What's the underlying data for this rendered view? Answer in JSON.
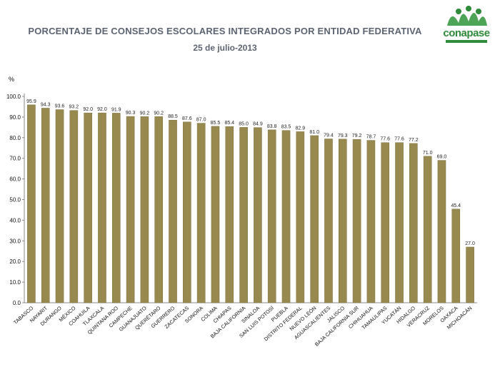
{
  "header": {
    "title": "PORCENTAJE  DE CONSEJOS ESCOLARES INTEGRADOS   POR ENTIDAD FEDERATIVA",
    "subtitle": "25 de julio-2013",
    "logo_text": "conapase"
  },
  "colors": {
    "bar": "#988a4e",
    "bar_stroke": "#7c7040",
    "axis": "#888888",
    "logo_green": "#2f8a3a"
  },
  "chart_data": {
    "type": "bar",
    "title": "PORCENTAJE  DE CONSEJOS ESCOLARES INTEGRADOS   POR ENTIDAD FEDERATIVA",
    "subtitle": "25 de julio-2013",
    "ylabel": "%",
    "ylim": [
      0,
      100
    ],
    "yticks": [
      0,
      10,
      20,
      30,
      40,
      50,
      60,
      70,
      80,
      90,
      100
    ],
    "ytick_labels": [
      "0.0",
      "10.0",
      "20.0",
      "30.0",
      "40.0",
      "50.0",
      "60.0",
      "70.0",
      "80.0",
      "90.0",
      "100.0"
    ],
    "grid": false,
    "categories": [
      "TABASCO",
      "NAYARIT",
      "DURANGO",
      "MÉXICO",
      "COAHUILA",
      "TLAXCALA",
      "QUINTANA ROO",
      "CAMPECHE",
      "GUANAJUATO",
      "QUERÉTARO",
      "GUERRERO",
      "ZACATECAS",
      "SONORA",
      "COLIMA",
      "CHIAPAS",
      "BAJA CALIFORNIA",
      "SINALOA",
      "SAN LUIS POTOSÍ",
      "PUEBLA",
      "DISTRITO FEDERAL",
      "NUEVO LEÓN",
      "AGUASCALIENTES",
      "JALISCO",
      "BAJA CALIFORNIA SUR",
      "CHIHUAHUA",
      "TAMAULIPAS",
      "YUCATÁN",
      "HIDALGO",
      "VERACRUZ",
      "MORELOS",
      "OAXACA",
      "MICHOACÁN"
    ],
    "values": [
      95.9,
      94.3,
      93.6,
      93.2,
      92.0,
      92.0,
      91.9,
      90.3,
      90.2,
      90.2,
      88.5,
      87.6,
      87.0,
      85.5,
      85.4,
      85.0,
      84.9,
      83.8,
      83.5,
      82.9,
      81.0,
      79.4,
      79.3,
      79.2,
      78.7,
      77.6,
      77.6,
      77.2,
      71.0,
      69.0,
      45.4,
      27.0
    ],
    "value_labels": [
      "95.9",
      "94.3",
      "93.6",
      "93.2",
      "92.0",
      "92.0",
      "91.9",
      "90.3",
      "90.2",
      "90.2",
      "88.5",
      "87.6",
      "87.0",
      "85.5",
      "85.4",
      "85.0",
      "84.9",
      "83.8",
      "83.5",
      "82.9",
      "81.0",
      "79.4",
      "79.3",
      "79.2",
      "78.7",
      "77.6",
      "77.6",
      "77.2",
      "71.0",
      "69.0",
      "45.4",
      "27.0"
    ]
  }
}
